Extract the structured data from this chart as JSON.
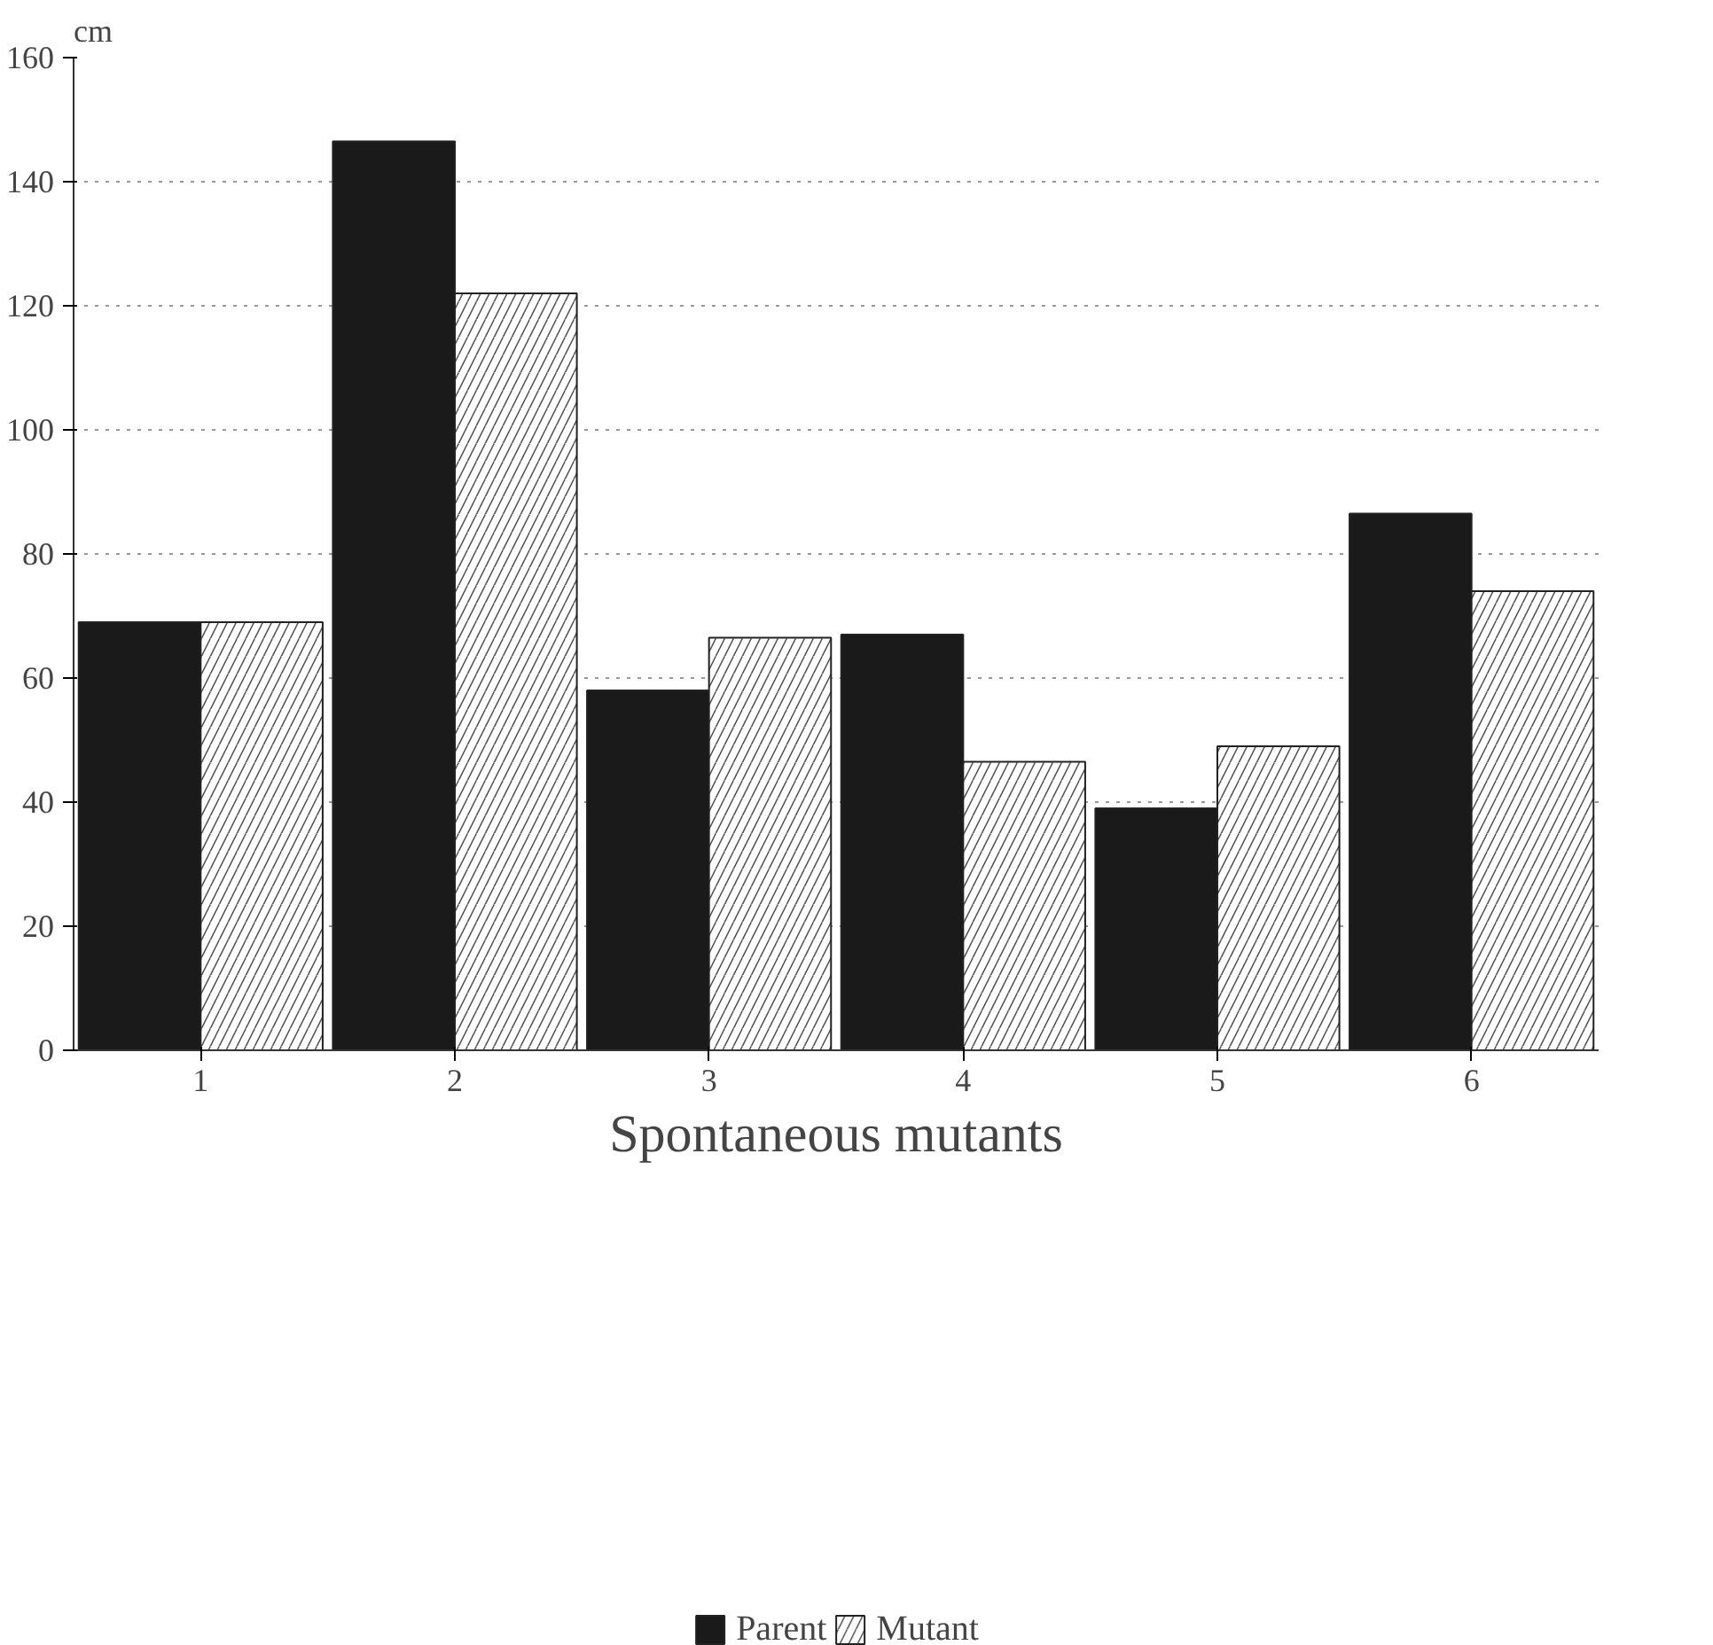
{
  "chart_data": {
    "type": "bar",
    "xlabel": "Spontaneous mutants",
    "ylabel": "cm",
    "categories": [
      "1",
      "2",
      "3",
      "4",
      "5",
      "6"
    ],
    "series": [
      {
        "name": "Parent",
        "color": "#1a1a1a",
        "values": [
          69,
          146.5,
          58,
          67,
          39,
          86.5
        ]
      },
      {
        "name": "Mutant",
        "color": "#ffffff",
        "values": [
          69,
          122,
          66.5,
          46.5,
          49,
          74
        ]
      }
    ],
    "ylim": [
      0,
      160
    ],
    "yticks": [
      0,
      20,
      40,
      60,
      80,
      100,
      120,
      140,
      160
    ],
    "grid": "y",
    "legend": "bottom"
  }
}
